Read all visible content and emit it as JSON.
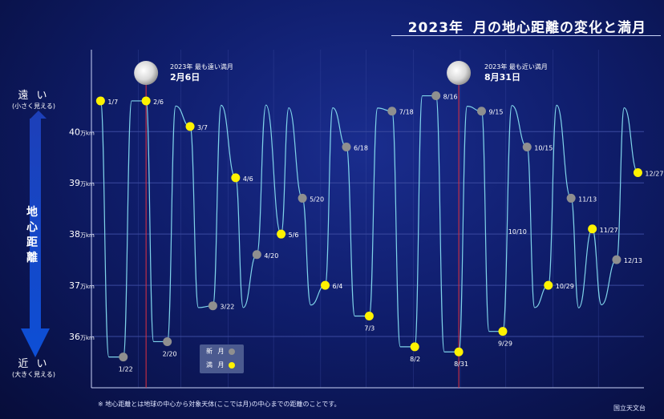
{
  "title": {
    "year": "2023年",
    "text": "月の地心距離の変化と満月"
  },
  "axis": {
    "far": {
      "word": "遠 い",
      "sub": "(小さく見える)"
    },
    "near": {
      "word": "近 い",
      "sub": "(大きく見える)"
    },
    "center_label": "地心距離",
    "unit": "万km"
  },
  "annotations": {
    "farthest": {
      "line1": "2023年 最も遠い満月",
      "date": "2月6日"
    },
    "nearest": {
      "line1": "2023年 最も近い満月",
      "date": "8月31日"
    }
  },
  "legend": {
    "new_moon": "新 月",
    "full_moon": "満 月"
  },
  "note": "※ 地心距離とは地球の中心から対象天体(ここでは月)の中心までの距離のことです。",
  "credit": "国立天文台",
  "colors": {
    "curve": "#7fd3ea",
    "full_moon": "#fff200",
    "new_moon": "#8f8f8f",
    "highlight_line": "#e0303f",
    "grid": "#3b4aa0"
  },
  "chart_data": {
    "type": "line",
    "ylim": [
      35.0,
      41.6
    ],
    "y_ticks": [
      36,
      37,
      38,
      39,
      40
    ],
    "xlim": [
      "2023-01-01",
      "2023-12-31"
    ],
    "grid": true,
    "series": [
      {
        "name": "満 月",
        "points": [
          {
            "date": "2023-01-07",
            "label": "1/7",
            "value": 40.6
          },
          {
            "date": "2023-02-06",
            "label": "2/6",
            "value": 40.6
          },
          {
            "date": "2023-03-07",
            "label": "3/7",
            "value": 40.1
          },
          {
            "date": "2023-04-06",
            "label": "4/6",
            "value": 39.1
          },
          {
            "date": "2023-05-06",
            "label": "5/6",
            "value": 38.0
          },
          {
            "date": "2023-06-04",
            "label": "6/4",
            "value": 37.0
          },
          {
            "date": "2023-07-03",
            "label": "7/3",
            "value": 36.4
          },
          {
            "date": "2023-08-02",
            "label": "8/2",
            "value": 35.8
          },
          {
            "date": "2023-08-31",
            "label": "8/31",
            "value": 35.7
          },
          {
            "date": "2023-09-29",
            "label": "9/29",
            "value": 36.1
          },
          {
            "date": "2023-10-29",
            "label": "10/29",
            "value": 37.0
          },
          {
            "date": "2023-11-27",
            "label": "11/27",
            "value": 38.1
          },
          {
            "date": "2023-12-27",
            "label": "12/27",
            "value": 39.2
          }
        ]
      },
      {
        "name": "新 月",
        "points": [
          {
            "date": "2023-01-22",
            "label": "1/22",
            "value": 35.6
          },
          {
            "date": "2023-02-20",
            "label": "2/20",
            "value": 35.9
          },
          {
            "date": "2023-03-22",
            "label": "3/22",
            "value": 36.6
          },
          {
            "date": "2023-04-20",
            "label": "4/20",
            "value": 37.6
          },
          {
            "date": "2023-05-20",
            "label": "5/20",
            "value": 38.7
          },
          {
            "date": "2023-06-18",
            "label": "6/18",
            "value": 39.7
          },
          {
            "date": "2023-07-18",
            "label": "7/18",
            "value": 40.4
          },
          {
            "date": "2023-08-16",
            "label": "8/16",
            "value": 40.7
          },
          {
            "date": "2023-09-15",
            "label": "9/15",
            "value": 40.4
          },
          {
            "date": "2023-10-15",
            "label": "10/15",
            "value": 39.7
          },
          {
            "date": "2023-11-13",
            "label": "11/13",
            "value": 38.7
          },
          {
            "date": "2023-12-13",
            "label": "12/13",
            "value": 37.5
          }
        ]
      }
    ],
    "highlight_dates": [
      "2023-02-06",
      "2023-08-31"
    ],
    "unlabeled_full_moon_label": "10/10"
  }
}
